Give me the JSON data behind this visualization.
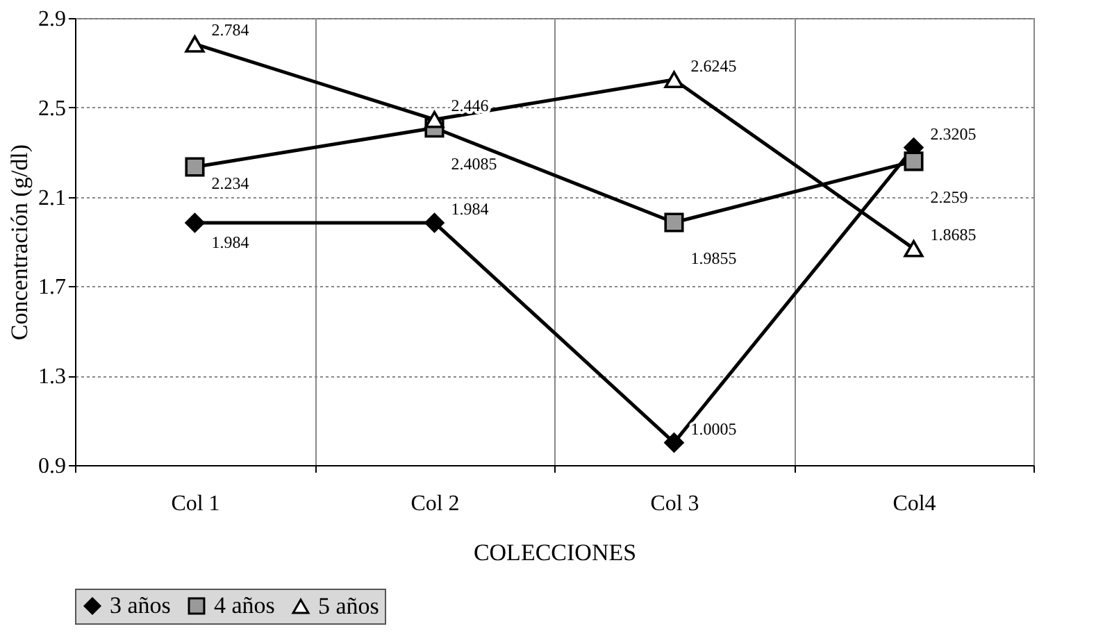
{
  "chart_data": {
    "type": "line",
    "xlabel": "COLECCIONES",
    "ylabel": "Concentración (g/dl)",
    "categories": [
      "Col 1",
      "Col 2",
      "Col 3",
      "Col4"
    ],
    "series": [
      {
        "name": "3 años",
        "color": "#000000",
        "marker": "diamond",
        "values": [
          1.984,
          1.984,
          1.0005,
          2.3205
        ]
      },
      {
        "name": "4 años",
        "color": "#000000",
        "marker": "square",
        "values": [
          2.234,
          2.4085,
          1.9855,
          2.259
        ]
      },
      {
        "name": "5 años",
        "color": "#000000",
        "marker": "triangle",
        "values": [
          2.784,
          2.446,
          2.6245,
          1.8685
        ]
      }
    ],
    "ylim": [
      0.9,
      2.9
    ],
    "yticks": [
      0.9,
      1.3,
      1.7,
      2.1,
      2.5,
      2.9
    ],
    "grid": true,
    "legend": "bottom",
    "data_labels": true
  }
}
